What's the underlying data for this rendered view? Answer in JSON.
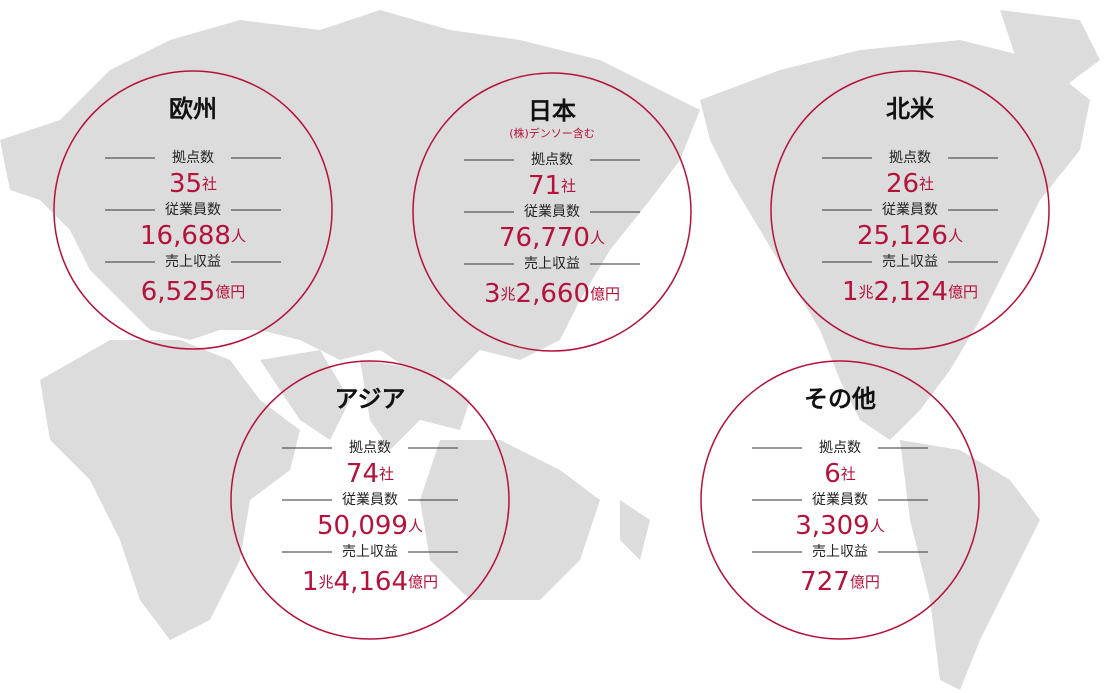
{
  "regions": [
    {
      "name": "欧州",
      "stats": [
        {
          "label": "拠点数",
          "value": [
            "35",
            "社"
          ]
        },
        {
          "label": "従業員数",
          "value": [
            "16,688",
            "人"
          ]
        },
        {
          "label": "売上収益",
          "value": [
            "6,525",
            "億円"
          ]
        }
      ]
    },
    {
      "name": "日本",
      "note": "(株)デンソー含む",
      "stats": [
        {
          "label": "拠点数",
          "value": [
            "71",
            "社"
          ]
        },
        {
          "label": "従業員数",
          "value": [
            "76,770",
            "人"
          ]
        },
        {
          "label": "売上収益",
          "value": [
            "3",
            "兆",
            "2,660",
            "億円"
          ]
        }
      ]
    },
    {
      "name": "北米",
      "stats": [
        {
          "label": "拠点数",
          "value": [
            "26",
            "社"
          ]
        },
        {
          "label": "従業員数",
          "value": [
            "25,126",
            "人"
          ]
        },
        {
          "label": "売上収益",
          "value": [
            "1",
            "兆",
            "2,124",
            "億円"
          ]
        }
      ]
    },
    {
      "name": "アジア",
      "stats": [
        {
          "label": "拠点数",
          "value": [
            "74",
            "社"
          ]
        },
        {
          "label": "従業員数",
          "value": [
            "50,099",
            "人"
          ]
        },
        {
          "label": "売上収益",
          "value": [
            "1",
            "兆",
            "4,164",
            "億円"
          ]
        }
      ]
    },
    {
      "name": "その他",
      "stats": [
        {
          "label": "拠点数",
          "value": [
            "6",
            "社"
          ]
        },
        {
          "label": "従業員数",
          "value": [
            "3,309",
            "人"
          ]
        },
        {
          "label": "売上収益",
          "value": [
            "727",
            "億円"
          ]
        }
      ]
    }
  ]
}
